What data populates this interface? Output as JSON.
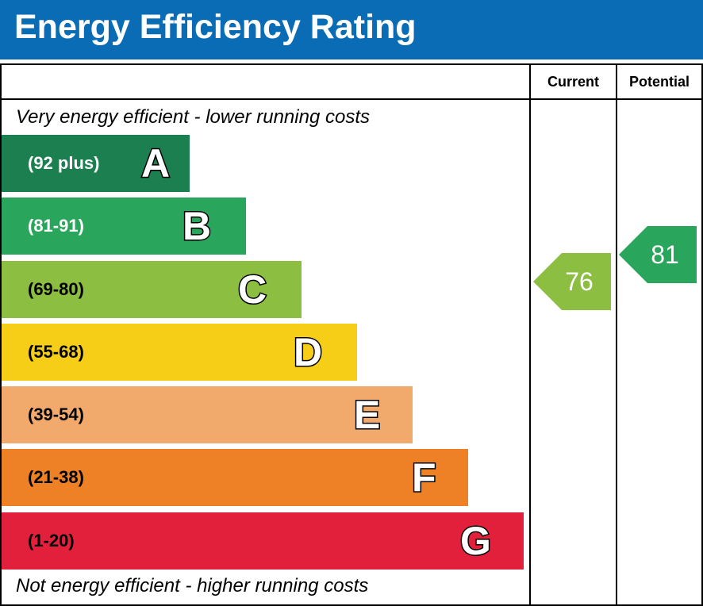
{
  "title": "Energy Efficiency Rating",
  "columns": {
    "current": "Current",
    "potential": "Potential"
  },
  "notes": {
    "top": "Very energy efficient - lower running costs",
    "bottom": "Not energy efficient - higher running costs"
  },
  "chart_data": {
    "type": "bar",
    "categories": [
      "A",
      "B",
      "C",
      "D",
      "E",
      "F",
      "G"
    ],
    "bands": [
      {
        "letter": "A",
        "range": "(92 plus)",
        "color": "#1b7f4f",
        "text_color": "#ffffff"
      },
      {
        "letter": "B",
        "range": "(81-91)",
        "color": "#2aa55c",
        "text_color": "#ffffff"
      },
      {
        "letter": "C",
        "range": "(69-80)",
        "color": "#8cbe41",
        "text_color": "#000000"
      },
      {
        "letter": "D",
        "range": "(55-68)",
        "color": "#f6cd17",
        "text_color": "#000000"
      },
      {
        "letter": "E",
        "range": "(39-54)",
        "color": "#f2a96c",
        "text_color": "#000000"
      },
      {
        "letter": "F",
        "range": "(21-38)",
        "color": "#ee8125",
        "text_color": "#000000"
      },
      {
        "letter": "G",
        "range": "(1-20)",
        "color": "#e3203b",
        "text_color": "#000000"
      }
    ],
    "current": {
      "value": 76,
      "band": "C",
      "color": "#8cbe41"
    },
    "potential": {
      "value": 81,
      "band": "B",
      "color": "#2aa55c"
    }
  }
}
